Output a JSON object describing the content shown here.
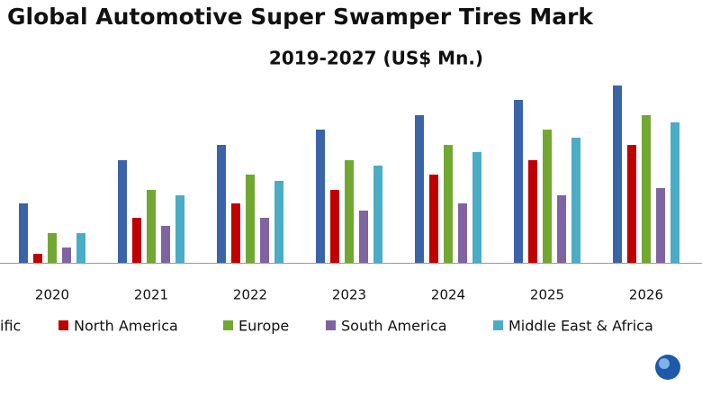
{
  "chart_data": {
    "type": "bar",
    "title": "Global Automotive Super Swamper Tires Mark",
    "subtitle": "2019-2027 (US$ Mn.)",
    "categories": [
      "2020",
      "2021",
      "2022",
      "2023",
      "2024",
      "2025",
      "2026"
    ],
    "series": [
      {
        "name": "ific",
        "color": "#3b63a8",
        "values": [
          66,
          114,
          131,
          148,
          164,
          181,
          197
        ]
      },
      {
        "name": "North America",
        "color": "#c00000",
        "values": [
          10,
          50,
          66,
          81,
          98,
          114,
          131
        ]
      },
      {
        "name": "Europe",
        "color": "#72a832",
        "values": [
          33,
          81,
          98,
          114,
          131,
          148,
          164
        ]
      },
      {
        "name": "South America",
        "color": "#8064a2",
        "values": [
          17,
          41,
          50,
          58,
          66,
          75,
          83
        ]
      },
      {
        "name": "Middle East & Africa",
        "color": "#4bacc6",
        "values": [
          33,
          75,
          91,
          108,
          123,
          139,
          156
        ]
      }
    ],
    "ylim": [
      0,
      200
    ]
  }
}
